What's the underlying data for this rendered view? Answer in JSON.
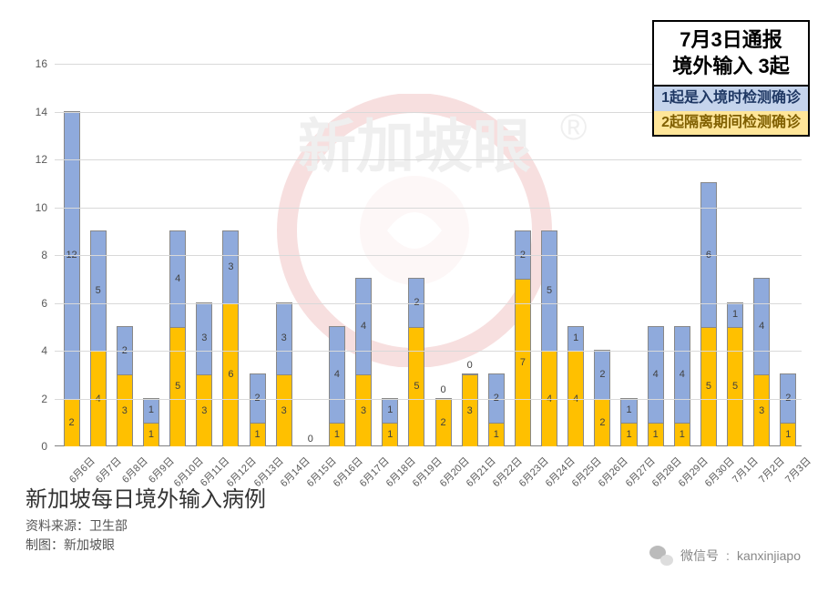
{
  "chart": {
    "type": "stacked-bar",
    "ylim": [
      0,
      16
    ],
    "ytick_step": 2,
    "grid_color": "#d9d9d9",
    "background_color": "#ffffff",
    "series_colors": {
      "quarantine": "#ffc000",
      "entry": "#8faadc"
    },
    "categories": [
      "6月6日",
      "6月7日",
      "6月8日",
      "6月9日",
      "6月10日",
      "6月11日",
      "6月12日",
      "6月13日",
      "6月14日",
      "6月15日",
      "6月16日",
      "6月17日",
      "6月18日",
      "6月19日",
      "6月20日",
      "6月21日",
      "6月22日",
      "6月23日",
      "6月24日",
      "6月25日",
      "6月26日",
      "6月27日",
      "6月28日",
      "6月29日",
      "6月30日",
      "7月1日",
      "7月2日",
      "7月3日"
    ],
    "bars": [
      {
        "bottom": 2,
        "top": 12
      },
      {
        "bottom": 4,
        "top": 5
      },
      {
        "bottom": 3,
        "top": 2
      },
      {
        "bottom": 1,
        "top": 1
      },
      {
        "bottom": 5,
        "top": 4
      },
      {
        "bottom": 3,
        "top": 3
      },
      {
        "bottom": 6,
        "top": 3
      },
      {
        "bottom": 1,
        "top": 2
      },
      {
        "bottom": 3,
        "top": 3
      },
      {
        "bottom": 0,
        "top": 0,
        "zero_label": "0"
      },
      {
        "bottom": 1,
        "top": 4
      },
      {
        "bottom": 3,
        "top": 4
      },
      {
        "bottom": 1,
        "top": 1
      },
      {
        "bottom": 5,
        "top": 2
      },
      {
        "bottom": 2,
        "top": 0,
        "zero_label": "0"
      },
      {
        "bottom": 3,
        "top": 0,
        "zero_label": "0"
      },
      {
        "bottom": 1,
        "top": 2
      },
      {
        "bottom": 7,
        "top": 2
      },
      {
        "bottom": 4,
        "top": 5
      },
      {
        "bottom": 4,
        "top": 1
      },
      {
        "bottom": 2,
        "top": 2
      },
      {
        "bottom": 1,
        "top": 1
      },
      {
        "bottom": 1,
        "top": 4
      },
      {
        "bottom": 1,
        "top": 4
      },
      {
        "bottom": 5,
        "top": 6
      },
      {
        "bottom": 5,
        "top": 1
      },
      {
        "bottom": 3,
        "top": 4
      },
      {
        "bottom": 1,
        "top": 2
      }
    ]
  },
  "infobox": {
    "title_line1": "7月3日通报",
    "title_line2": "境外输入 3起",
    "blue_line": "1起是入境时检测确诊",
    "yellow_line": "2起隔离期间检测确诊"
  },
  "caption": {
    "title": "新加坡每日境外输入病例",
    "source": "资料来源：卫生部",
    "maker": "制图：新加坡眼"
  },
  "footer": {
    "label": "微信号",
    "id": "kanxinjiapo"
  }
}
